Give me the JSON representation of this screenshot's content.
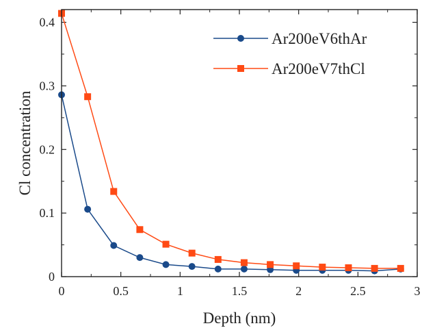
{
  "chart_data": {
    "type": "line",
    "title": "",
    "xlabel": "Depth (nm)",
    "ylabel": "Cl concentration",
    "xlim": [
      0,
      3
    ],
    "ylim": [
      0,
      0.42
    ],
    "xticks": [
      0,
      0.5,
      1,
      1.5,
      2,
      2.5,
      3
    ],
    "xtick_labels": [
      "0",
      "0.5",
      "1",
      "1.5",
      "2",
      "2.5",
      "3"
    ],
    "yticks": [
      0,
      0.1,
      0.2,
      0.3,
      0.4
    ],
    "ytick_labels": [
      "0",
      "0.1",
      "0.2",
      "0.3",
      "0.4"
    ],
    "grid": false,
    "legend_position": "top-right",
    "x": [
      0,
      0.22,
      0.44,
      0.66,
      0.88,
      1.1,
      1.32,
      1.54,
      1.76,
      1.98,
      2.2,
      2.42,
      2.64,
      2.86
    ],
    "series": [
      {
        "name": "Ar200eV6thAr",
        "color": "#1a4a8a",
        "marker": "circle",
        "values": [
          0.286,
          0.106,
          0.049,
          0.03,
          0.019,
          0.016,
          0.012,
          0.012,
          0.011,
          0.01,
          0.01,
          0.01,
          0.009,
          0.012
        ]
      },
      {
        "name": "Ar200eV7thCl",
        "color": "#ff4a14",
        "marker": "square",
        "values": [
          0.414,
          0.283,
          0.134,
          0.074,
          0.051,
          0.037,
          0.027,
          0.022,
          0.019,
          0.017,
          0.015,
          0.014,
          0.013,
          0.013
        ]
      }
    ]
  }
}
